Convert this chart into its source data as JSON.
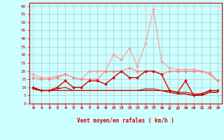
{
  "x": [
    0,
    1,
    2,
    3,
    4,
    5,
    6,
    7,
    8,
    9,
    10,
    11,
    12,
    13,
    14,
    15,
    16,
    17,
    18,
    19,
    20,
    21,
    22,
    23
  ],
  "series": [
    {
      "name": "rafales_max",
      "color": "#ff9999",
      "linewidth": 0.8,
      "marker": "D",
      "markersize": 2.0,
      "values": [
        18,
        16,
        16,
        17,
        18,
        16,
        15,
        20,
        20,
        20,
        30,
        27,
        34,
        23,
        37,
        58,
        26,
        22,
        21,
        21,
        21,
        20,
        19,
        14
      ]
    },
    {
      "name": "rafales_moy",
      "color": "#ff8080",
      "linewidth": 0.8,
      "marker": "D",
      "markersize": 2.0,
      "values": [
        16,
        15,
        15,
        16,
        18,
        16,
        15,
        15,
        15,
        20,
        20,
        20,
        22,
        20,
        20,
        20,
        18,
        20,
        20,
        20,
        20,
        20,
        18,
        14
      ]
    },
    {
      "name": "vent_max",
      "color": "#dd0000",
      "linewidth": 1.0,
      "marker": "D",
      "markersize": 2.0,
      "values": [
        10,
        8,
        8,
        10,
        14,
        10,
        10,
        14,
        14,
        12,
        16,
        20,
        16,
        16,
        20,
        20,
        18,
        8,
        7,
        14,
        5,
        6,
        8,
        8
      ]
    },
    {
      "name": "vent_moy_high",
      "color": "#bb0000",
      "linewidth": 0.8,
      "marker": null,
      "markersize": 0,
      "values": [
        10,
        8,
        8,
        9,
        10,
        8,
        8,
        8,
        8,
        8,
        8,
        8,
        8,
        8,
        9,
        9,
        8,
        8,
        7,
        7,
        6,
        6,
        8,
        8
      ]
    },
    {
      "name": "vent_moy_low",
      "color": "#880000",
      "linewidth": 0.8,
      "marker": null,
      "markersize": 0,
      "values": [
        9,
        8,
        8,
        8,
        8,
        8,
        8,
        8,
        8,
        8,
        8,
        8,
        8,
        8,
        8,
        8,
        8,
        7,
        6,
        6,
        5,
        5,
        7,
        7
      ]
    },
    {
      "name": "vent_min",
      "color": "#cc0000",
      "linewidth": 0.8,
      "marker": null,
      "markersize": 0,
      "values": [
        9,
        8,
        8,
        8,
        8,
        8,
        8,
        8,
        8,
        8,
        8,
        8,
        8,
        8,
        8,
        8,
        8,
        7,
        6,
        6,
        5,
        5,
        7,
        7
      ]
    }
  ],
  "xlim": [
    -0.5,
    23.5
  ],
  "ylim": [
    0,
    62
  ],
  "yticks": [
    0,
    5,
    10,
    15,
    20,
    25,
    30,
    35,
    40,
    45,
    50,
    55,
    60
  ],
  "xticks": [
    0,
    1,
    2,
    3,
    4,
    5,
    6,
    7,
    8,
    9,
    10,
    11,
    12,
    13,
    14,
    15,
    16,
    17,
    18,
    19,
    20,
    21,
    22,
    23
  ],
  "xlabel": "Vent moyen/en rafales ( km/h )",
  "background_color": "#ccffff",
  "grid_color": "#aabbbb",
  "tick_color": "#cc0000",
  "label_color": "#cc0000",
  "spine_color": "#cc0000"
}
